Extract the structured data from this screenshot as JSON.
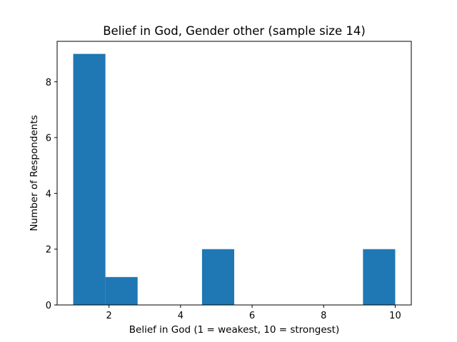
{
  "chart_data": {
    "type": "bar",
    "title": "Belief in God, Gender other (sample size 14)",
    "xlabel": "Belief in God (1 = weakest, 10 = strongest)",
    "ylabel": "Number of Respondents",
    "xlim": [
      0.55,
      10.45
    ],
    "ylim": [
      0,
      9.45
    ],
    "xticks": [
      2,
      4,
      6,
      8,
      10
    ],
    "yticks": [
      0,
      2,
      4,
      6,
      8
    ],
    "bin_edges": [
      1,
      1.9,
      2.8,
      3.7,
      4.6,
      5.5,
      6.4,
      7.3,
      8.2,
      9.1,
      10
    ],
    "values": [
      9,
      1,
      0,
      0,
      2,
      0,
      0,
      0,
      0,
      2
    ],
    "bar_color": "#1f77b4",
    "grid": false,
    "legend": "none"
  }
}
